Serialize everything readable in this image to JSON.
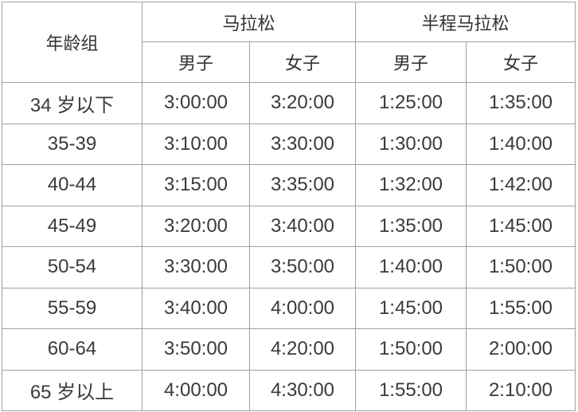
{
  "header": {
    "age_group": "年龄组",
    "marathon": "马拉松",
    "half_marathon": "半程马拉松",
    "male": "男子",
    "female": "女子"
  },
  "rows": [
    {
      "age": "34 岁以下",
      "m_male": "3:00:00",
      "m_female": "3:20:00",
      "h_male": "1:25:00",
      "h_female": "1:35:00"
    },
    {
      "age": "35-39",
      "m_male": "3:10:00",
      "m_female": "3:30:00",
      "h_male": "1:30:00",
      "h_female": "1:40:00"
    },
    {
      "age": "40-44",
      "m_male": "3:15:00",
      "m_female": "3:35:00",
      "h_male": "1:32:00",
      "h_female": "1:42:00"
    },
    {
      "age": "45-49",
      "m_male": "3:20:00",
      "m_female": "3:40:00",
      "h_male": "1:35:00",
      "h_female": "1:45:00"
    },
    {
      "age": "50-54",
      "m_male": "3:30:00",
      "m_female": "3:50:00",
      "h_male": "1:40:00",
      "h_female": "1:50:00"
    },
    {
      "age": "55-59",
      "m_male": "3:40:00",
      "m_female": "4:00:00",
      "h_male": "1:45:00",
      "h_female": "1:55:00"
    },
    {
      "age": "60-64",
      "m_male": "3:50:00",
      "m_female": "4:20:00",
      "h_male": "1:50:00",
      "h_female": "2:00:00"
    },
    {
      "age": "65 岁以上",
      "m_male": "4:00:00",
      "m_female": "4:30:00",
      "h_male": "1:55:00",
      "h_female": "2:10:00"
    }
  ]
}
